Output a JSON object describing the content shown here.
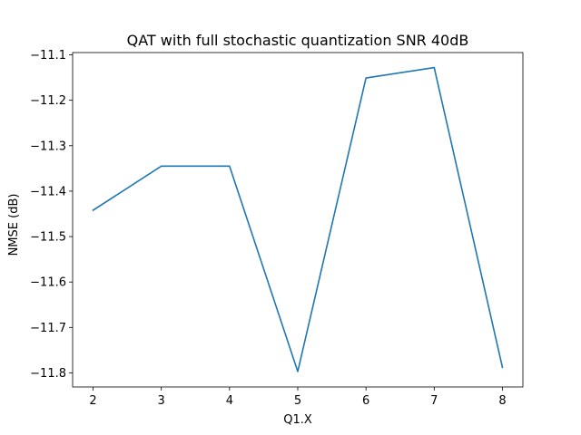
{
  "chart_data": {
    "type": "line",
    "title": "QAT with full stochastic quantization SNR 40dB",
    "xlabel": "Q1.X",
    "ylabel": "NMSE (dB)",
    "x": [
      2,
      3,
      4,
      5,
      6,
      7,
      8
    ],
    "series": [
      {
        "values": [
          -11.442,
          -11.345,
          -11.345,
          -11.797,
          -11.151,
          -11.128,
          -11.788
        ]
      }
    ],
    "xlim": [
      1.7,
      8.3
    ],
    "ylim": [
      -11.831,
      -11.095
    ],
    "x_ticks": [
      2,
      3,
      4,
      5,
      6,
      7,
      8
    ],
    "x_tick_labels": [
      "2",
      "3",
      "4",
      "5",
      "6",
      "7",
      "8"
    ],
    "y_ticks": [
      -11.1,
      -11.2,
      -11.3,
      -11.4,
      -11.5,
      -11.6,
      -11.7,
      -11.8
    ],
    "y_tick_labels": [
      "−11.1",
      "−11.2",
      "−11.3",
      "−11.4",
      "−11.5",
      "−11.6",
      "−11.7",
      "−11.8"
    ],
    "grid": false,
    "line_color": "#1f77b4"
  }
}
